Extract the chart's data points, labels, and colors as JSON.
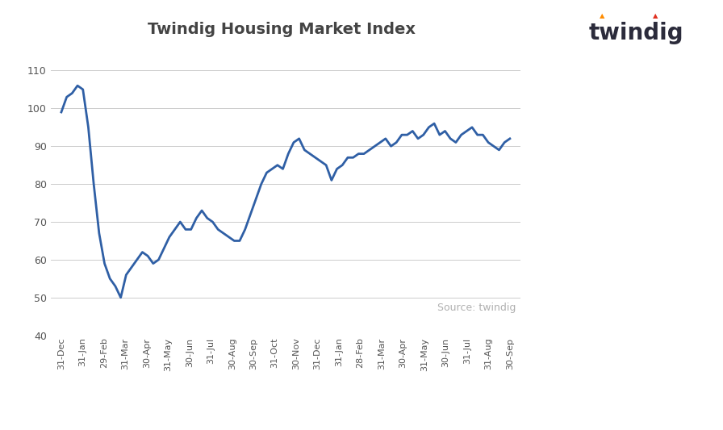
{
  "title": "Twindig Housing Market Index",
  "line_color": "#2F5FA5",
  "line_width": 2.0,
  "background_color": "#ffffff",
  "ylim": [
    40,
    115
  ],
  "yticks": [
    40,
    50,
    60,
    70,
    80,
    90,
    100,
    110
  ],
  "source_text": "Source: twindig",
  "source_color": "#b0b0b0",
  "twindig_text": "twindig",
  "twindig_color": "#2b2b3b",
  "twindig_accent1": "#FF8C00",
  "twindig_accent2": "#e03020",
  "x_labels": [
    "31-Dec",
    "31-Jan",
    "29-Feb",
    "31-Mar",
    "30-Apr",
    "31-May",
    "30-Jun",
    "31-Jul",
    "30-Aug",
    "30-Sep",
    "31-Oct",
    "30-Nov",
    "31-Dec",
    "31-Jan",
    "28-Feb",
    "31-Mar",
    "30-Apr",
    "31-May",
    "30-Jun",
    "31-Jul",
    "31-Aug",
    "30-Sep"
  ],
  "values": [
    99,
    103,
    104,
    106,
    105,
    95,
    80,
    67,
    59,
    55,
    53,
    50,
    56,
    58,
    60,
    62,
    61,
    59,
    60,
    63,
    66,
    68,
    70,
    68,
    68,
    71,
    73,
    71,
    70,
    68,
    67,
    66,
    65,
    65,
    68,
    72,
    76,
    80,
    83,
    84,
    85,
    84,
    88,
    91,
    92,
    89,
    88,
    87,
    86,
    85,
    81,
    84,
    85,
    87,
    87,
    88,
    88,
    89,
    90,
    91,
    92,
    90,
    91,
    93,
    93,
    94,
    92,
    93,
    95,
    96,
    93,
    94,
    92,
    91,
    93,
    94,
    95,
    93,
    93,
    91,
    90,
    89,
    91,
    92
  ]
}
